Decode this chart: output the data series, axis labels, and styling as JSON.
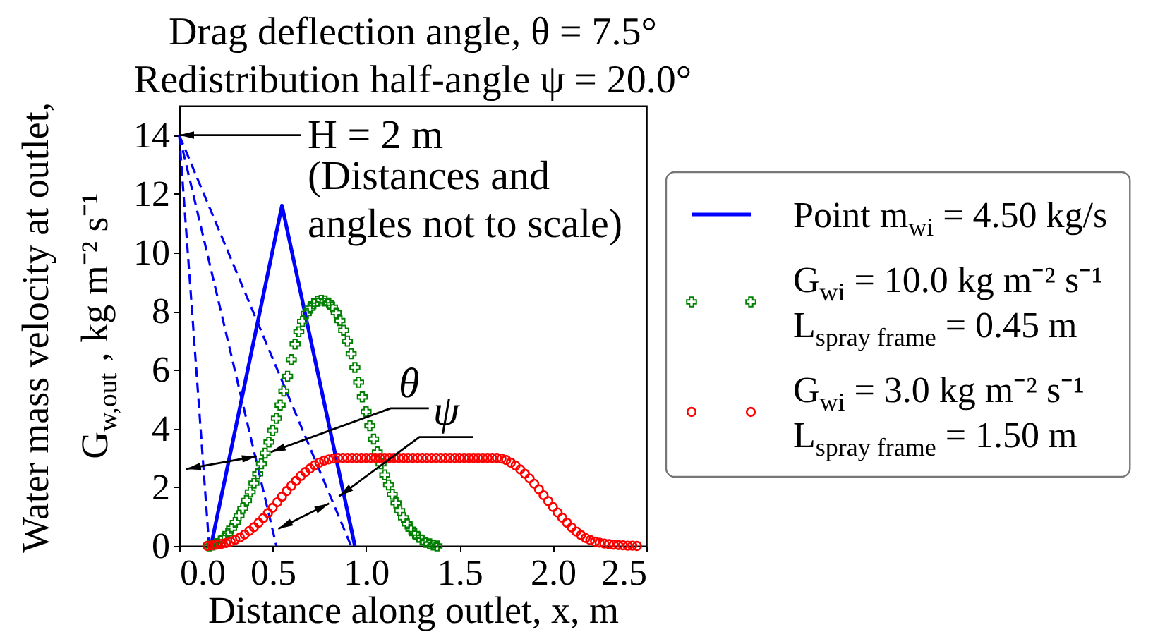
{
  "chart_data": {
    "type": "line",
    "title": "Drag deflection angle, θ = 7.5°",
    "subtitle": "Redistribution half-angle ψ = 20.0°",
    "xlabel": "Distance along outlet, x, m",
    "ylabel": "Water mass velocity at outlet,\nG$_{w,out}$ , kg m⁻² s⁻¹",
    "xlim": [
      0,
      2.5
    ],
    "xticks": [
      {
        "value": 0,
        "label": "0.0"
      },
      0.5,
      {
        "value": 1,
        "label": "1.0"
      },
      1.5,
      {
        "value": 2,
        "label": "2.0"
      },
      2.5
    ],
    "ylim": [
      0,
      15
    ],
    "yticks": [
      0,
      2,
      4,
      6,
      8,
      10,
      12,
      14
    ],
    "legend": "right",
    "series": [
      {
        "name": "Point m$_{wi}$ = 4.50 kg/s",
        "color": "#0000ff",
        "line_style": "solid",
        "x": [
          0.17,
          0.55,
          0.94
        ],
        "values": [
          0,
          11.6,
          0
        ]
      },
      {
        "color": "#0000ff",
        "line_style": "dashed",
        "x": [
          0,
          0.16
        ],
        "values": [
          14,
          0
        ]
      },
      {
        "color": "#0000ff",
        "line_style": "dashed",
        "x": [
          0,
          0.52
        ],
        "values": [
          14,
          0
        ]
      },
      {
        "color": "#0000ff",
        "line_style": "dashed",
        "x": [
          0,
          0.92
        ],
        "values": [
          14,
          0
        ]
      },
      {
        "name": "G$_{wi}$ = 10.0 kg m⁻² s⁻¹\nL$_{spray frame}$ = 0.45 m",
        "type": "scatter",
        "color": "#008000",
        "marker": "cross",
        "x": [
          0.16,
          0.18,
          0.2,
          0.22,
          0.24,
          0.26,
          0.28,
          0.3,
          0.32,
          0.34,
          0.36,
          0.38,
          0.4,
          0.42,
          0.44,
          0.46,
          0.48,
          0.5,
          0.52,
          0.54,
          0.56,
          0.58,
          0.6,
          0.62,
          0.64,
          0.66,
          0.68,
          0.7,
          0.72,
          0.74,
          0.76,
          0.78,
          0.8,
          0.82,
          0.84,
          0.86,
          0.88,
          0.9,
          0.92,
          0.94,
          0.96,
          0.98,
          1.0,
          1.02,
          1.04,
          1.06,
          1.08,
          1.1,
          1.12,
          1.14,
          1.16,
          1.18,
          1.2,
          1.22,
          1.24,
          1.26,
          1.28,
          1.3,
          1.32,
          1.34,
          1.36,
          1.38
        ],
        "values": [
          0,
          0.03,
          0.08,
          0.16,
          0.27,
          0.42,
          0.6,
          0.8,
          1.03,
          1.28,
          1.55,
          1.84,
          2.14,
          2.46,
          2.8,
          3.16,
          3.54,
          3.94,
          4.35,
          4.8,
          5.28,
          5.78,
          6.35,
          6.88,
          7.3,
          7.65,
          7.92,
          8.1,
          8.25,
          8.34,
          8.37,
          8.35,
          8.28,
          8.14,
          7.95,
          7.68,
          7.35,
          6.98,
          6.55,
          6.08,
          5.58,
          5.08,
          4.58,
          4.1,
          3.64,
          3.2,
          2.8,
          2.42,
          2.08,
          1.76,
          1.47,
          1.2,
          0.96,
          0.75,
          0.57,
          0.42,
          0.3,
          0.2,
          0.12,
          0.07,
          0.03,
          0
        ]
      },
      {
        "name": "G$_{wi}$ = 3.0 kg m⁻² s⁻¹\nL$_{spray frame}$ = 1.50 m",
        "type": "scatter",
        "color": "#ff0000",
        "marker": "circle",
        "x": [
          0.15,
          0.175,
          0.2,
          0.225,
          0.25,
          0.275,
          0.3,
          0.325,
          0.35,
          0.375,
          0.4,
          0.425,
          0.45,
          0.475,
          0.5,
          0.525,
          0.55,
          0.575,
          0.6,
          0.625,
          0.65,
          0.675,
          0.7,
          0.725,
          0.75,
          0.775,
          0.8,
          0.825,
          0.85,
          0.875,
          0.9,
          0.925,
          0.95,
          0.975,
          1.0,
          1.025,
          1.05,
          1.075,
          1.1,
          1.125,
          1.15,
          1.175,
          1.2,
          1.225,
          1.25,
          1.275,
          1.3,
          1.325,
          1.35,
          1.375,
          1.4,
          1.425,
          1.45,
          1.475,
          1.5,
          1.525,
          1.55,
          1.575,
          1.6,
          1.625,
          1.65,
          1.675,
          1.7,
          1.725,
          1.75,
          1.775,
          1.8,
          1.825,
          1.85,
          1.875,
          1.9,
          1.925,
          1.95,
          1.975,
          2.0,
          2.025,
          2.05,
          2.075,
          2.1,
          2.125,
          2.15,
          2.175,
          2.2,
          2.225,
          2.25,
          2.275,
          2.3,
          2.325,
          2.35,
          2.375,
          2.4,
          2.425,
          2.45
        ],
        "values": [
          0,
          0.02,
          0.04,
          0.07,
          0.1,
          0.15,
          0.21,
          0.29,
          0.39,
          0.51,
          0.64,
          0.79,
          0.95,
          1.12,
          1.3,
          1.49,
          1.68,
          1.87,
          2.05,
          2.22,
          2.38,
          2.52,
          2.64,
          2.75,
          2.84,
          2.91,
          2.95,
          2.98,
          3.0,
          3.0,
          3.0,
          3.0,
          3.0,
          3.0,
          3.0,
          3.0,
          3.0,
          3.0,
          3.0,
          3.0,
          3.0,
          3.0,
          3.0,
          3.0,
          3.0,
          3.0,
          3.0,
          3.0,
          3.0,
          3.0,
          3.0,
          3.0,
          3.0,
          3.0,
          3.0,
          3.0,
          3.0,
          3.0,
          3.0,
          3.0,
          3.0,
          3.0,
          3.0,
          2.98,
          2.93,
          2.84,
          2.74,
          2.61,
          2.46,
          2.3,
          2.12,
          1.93,
          1.73,
          1.53,
          1.33,
          1.14,
          0.96,
          0.79,
          0.63,
          0.49,
          0.37,
          0.27,
          0.2,
          0.15,
          0.11,
          0.08,
          0.06,
          0.04,
          0.03,
          0.02,
          0.01,
          0.01,
          0
        ]
      }
    ],
    "annotations": [
      {
        "text": "H = 2 m",
        "x": 0,
        "y": 14
      },
      "(Distances and\nangles not to scale)",
      {
        "text": "θ",
        "x": 0.49,
        "y": 3.2
      },
      {
        "text": "ψ",
        "x": 0.855,
        "y": 1.69
      }
    ]
  }
}
